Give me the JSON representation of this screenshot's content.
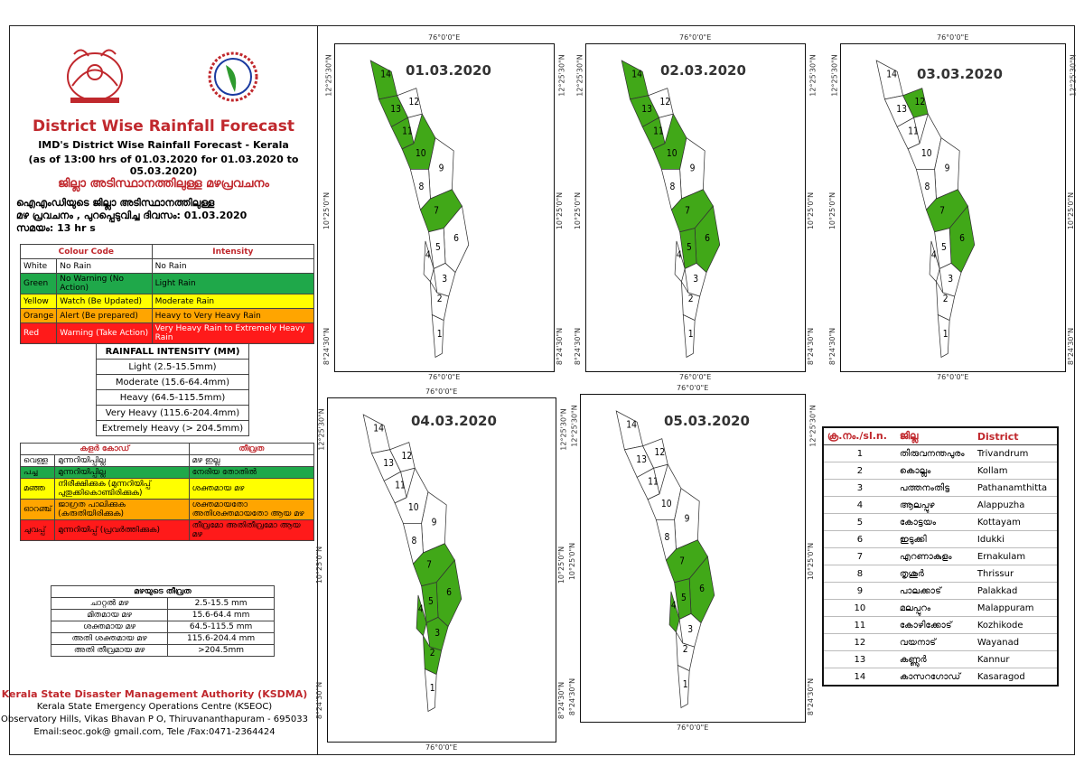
{
  "header": {
    "title": "District Wise Rainfall Forecast",
    "subtitle1": "IMD's District Wise Rainfall Forecast - Kerala",
    "subtitle2": "(as of 13:00 hrs of 01.03.2020  for 01.03.2020  to 05.03.2020)",
    "mal_title": "ജില്ലാ അടിസ്ഥാനത്തിലുള്ള മഴപ്രവചനം",
    "mal_line1": "ഐഎംഡിയുടെ ജില്ലാ   അടിസ്ഥാനത്തിലുള്ള",
    "mal_line2": "മഴ പ്രവചനം , പുറപ്പെടുവിച്ച  ദിവസം: 01.03.2020",
    "mal_line3": "സമയം: 13  hr s"
  },
  "colour_code": {
    "headers": [
      "Colour Code",
      "Intensity"
    ],
    "rows": [
      {
        "color": "White",
        "action": "No Rain",
        "intensity": "No Rain",
        "bg": "#ffffff"
      },
      {
        "color": "Green",
        "action": "No Warning (No Action)",
        "intensity": "Light Rain",
        "bg": "#1fa84a"
      },
      {
        "color": "Yellow",
        "action": "Watch (Be Updated)",
        "intensity": "Moderate Rain",
        "bg": "#ffff00"
      },
      {
        "color": "Orange",
        "action": "Alert (Be prepared)",
        "intensity": "Heavy to Very Heavy Rain",
        "bg": "#ffa500"
      },
      {
        "color": "Red",
        "action": "Warning (Take Action)",
        "intensity": "Very Heavy Rain to Extremely Heavy Rain",
        "bg": "#ff1a1a"
      }
    ]
  },
  "rainfall_intensity": {
    "title": "RAINFALL INTENSITY (MM)",
    "rows": [
      "Light (2.5-15.5mm)",
      "Moderate (15.6-64.4mm)",
      "Heavy (64.5-115.5mm)",
      "Very Heavy (115.6-204.4mm)",
      "Extremely Heavy (> 204.5mm)"
    ]
  },
  "mal_colour_code": {
    "headers": [
      "കളർ കോഡ്",
      "തീവ്രത"
    ],
    "rows": [
      {
        "color": "വെള്ള",
        "action": "മുന്നറിയിപ്പില്ല",
        "intensity": "മഴ ഇല്ല",
        "bg": "#ffffff"
      },
      {
        "color": "പച്ച",
        "action": "മുന്നറിയിപ്പില്ല",
        "intensity": "നേരിയ തോതിൽ",
        "bg": "#1fa84a"
      },
      {
        "color": "മഞ്ഞ",
        "action": "നിരീക്ഷിക്കുക (മുന്നറിയിപ്പ് പുതുക്കികൊണ്ടിരിക്കുക)",
        "intensity": "ശക്തമായ മഴ",
        "bg": "#ffff00"
      },
      {
        "color": "ഓറഞ്ച്",
        "action": "ജാഗ്രത പാലിക്കുക (കരുതിയിരിക്കുക)",
        "intensity": "ശക്തമായതോ അതിശക്തമായതോ ആയ മഴ",
        "bg": "#ffa500"
      },
      {
        "color": "ചുവപ്പ്",
        "action": "മുന്നറിയിപ്പ് (പ്രവർത്തിക്കുക)",
        "intensity": "തീവ്രമോ അതിതീവ്രമോ ആയ മഴ",
        "bg": "#ff1a1a"
      }
    ]
  },
  "mal_intensity": {
    "title": "മഴയുടെ തീവ്രത",
    "rows": [
      {
        "label": "ചാറ്റൽ മഴ",
        "value": "2.5-15.5 mm"
      },
      {
        "label": "മിതമായ മഴ",
        "value": "15.6-64.4 mm"
      },
      {
        "label": "ശക്തമായ മഴ",
        "value": "64.5-115.5 mm"
      },
      {
        "label": "അതി ശക്തമായ മഴ",
        "value": "115.6-204.4 mm"
      },
      {
        "label": "അതി തീവ്രമായ മഴ",
        "value": ">204.5mm"
      }
    ]
  },
  "footer": {
    "org": "Kerala State Disaster Management Authority (KSDMA)",
    "line1": "Kerala State Emergency Operations Centre (KSEOC)",
    "line2": "Observatory Hills, Vikas Bhavan P O, Thiruvananthapuram - 695033",
    "line3": "Email:seoc.gok@ gmail.com, Tele /Fax:0471-2364424"
  },
  "map_labels": {
    "lon_top": "76°0'0\"E",
    "lon_bottom": "76°0'0\"E",
    "lat_north": "12°25'30\"N",
    "lat_mid": "10°25'0\"N",
    "lat_south": "8°24'30\"N"
  },
  "maps": [
    {
      "date": "01.03.2020",
      "green": [
        7,
        10,
        11,
        13,
        14
      ]
    },
    {
      "date": "02.03.2020",
      "green": [
        5,
        6,
        7,
        10,
        11,
        13,
        14
      ]
    },
    {
      "date": "03.03.2020",
      "green": [
        6,
        7,
        12
      ]
    },
    {
      "date": "04.03.2020",
      "green": [
        2,
        3,
        4,
        5,
        6,
        7
      ]
    },
    {
      "date": "05.03.2020",
      "green": [
        4,
        5,
        6,
        7
      ]
    }
  ],
  "colors": {
    "green": "#41a818",
    "white": "#ffffff",
    "title_red": "#c0282d"
  },
  "district_table": {
    "headers": [
      "ക്ര.നം./sl.n.",
      "ജില്ല",
      "District"
    ],
    "rows": [
      {
        "n": "1",
        "mal": "തിരുവനന്തപുരം",
        "en": "Trivandrum"
      },
      {
        "n": "2",
        "mal": "കൊല്ലം",
        "en": "Kollam"
      },
      {
        "n": "3",
        "mal": "പത്തനംതിട്ട",
        "en": "Pathanamthitta"
      },
      {
        "n": "4",
        "mal": "ആലപ്പുഴ",
        "en": "Alappuzha"
      },
      {
        "n": "5",
        "mal": "കോട്ടയം",
        "en": "Kottayam"
      },
      {
        "n": "6",
        "mal": "ഇടുക്കി",
        "en": "Idukki"
      },
      {
        "n": "7",
        "mal": "എറണാകുളം",
        "en": "Ernakulam"
      },
      {
        "n": "8",
        "mal": "തൃശൂർ",
        "en": "Thrissur"
      },
      {
        "n": "9",
        "mal": "പാലക്കാട്",
        "en": "Palakkad"
      },
      {
        "n": "10",
        "mal": "മലപ്പുറം",
        "en": "Malappuram"
      },
      {
        "n": "11",
        "mal": "കോഴിക്കോട്",
        "en": "Kozhikode"
      },
      {
        "n": "12",
        "mal": "വയനാട്",
        "en": "Wayanad"
      },
      {
        "n": "13",
        "mal": "കണ്ണൂർ",
        "en": "Kannur"
      },
      {
        "n": "14",
        "mal": "കാസറഗോഡ്",
        "en": "Kasaragod"
      }
    ]
  }
}
